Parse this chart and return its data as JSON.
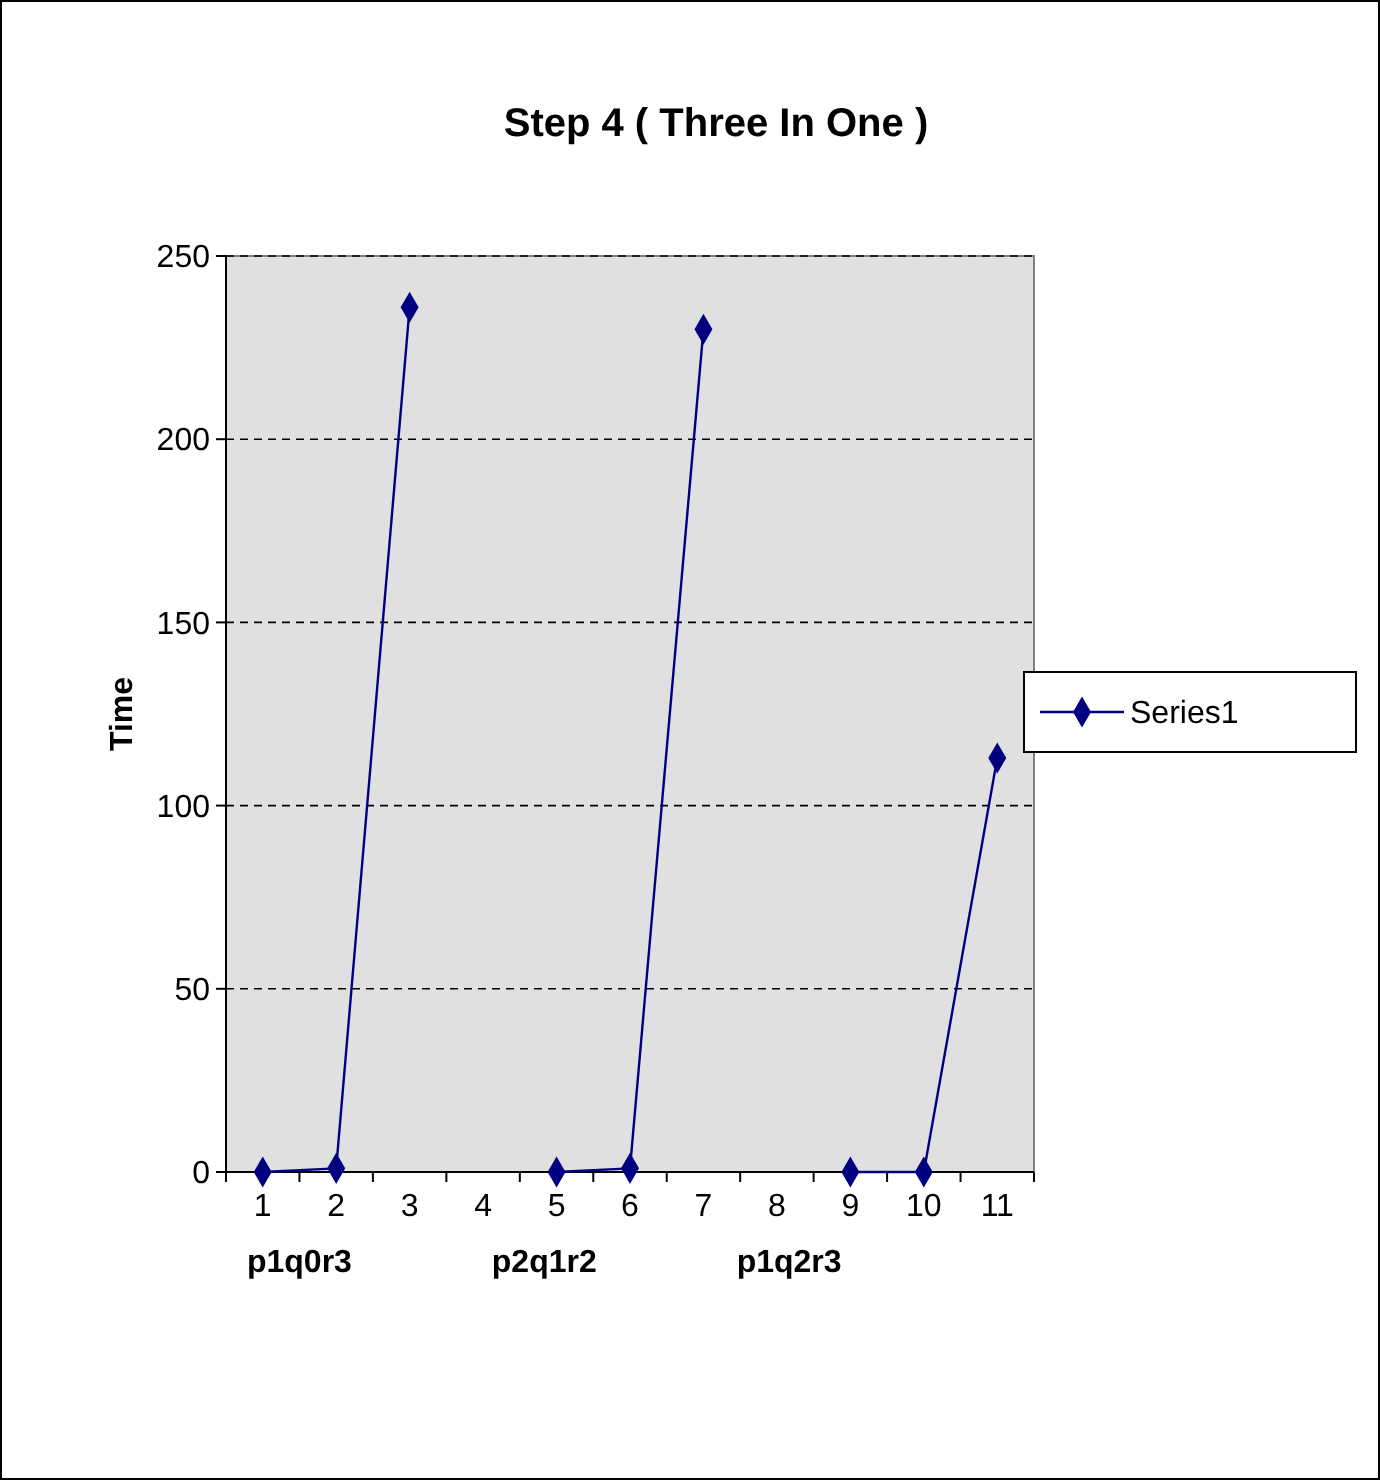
{
  "chart_data": {
    "type": "line",
    "title": "Step 4 ( Three In One )",
    "ylabel": "Time",
    "categories": [
      "1",
      "2",
      "3",
      "4",
      "5",
      "6",
      "7",
      "8",
      "9",
      "10",
      "11"
    ],
    "series": [
      {
        "name": "Series1",
        "color": "#000080",
        "values": [
          0,
          1,
          236,
          null,
          0,
          1,
          230,
          null,
          0,
          0,
          113
        ]
      }
    ],
    "ylim": [
      0,
      250
    ],
    "yticks": [
      0,
      50,
      100,
      150,
      200,
      250
    ],
    "grid": "y",
    "legend": "right",
    "marker": "diamond",
    "line_style": "solid",
    "annotations": [
      "p1q0r3",
      "p2q1r2",
      "p1q2r3"
    ]
  }
}
